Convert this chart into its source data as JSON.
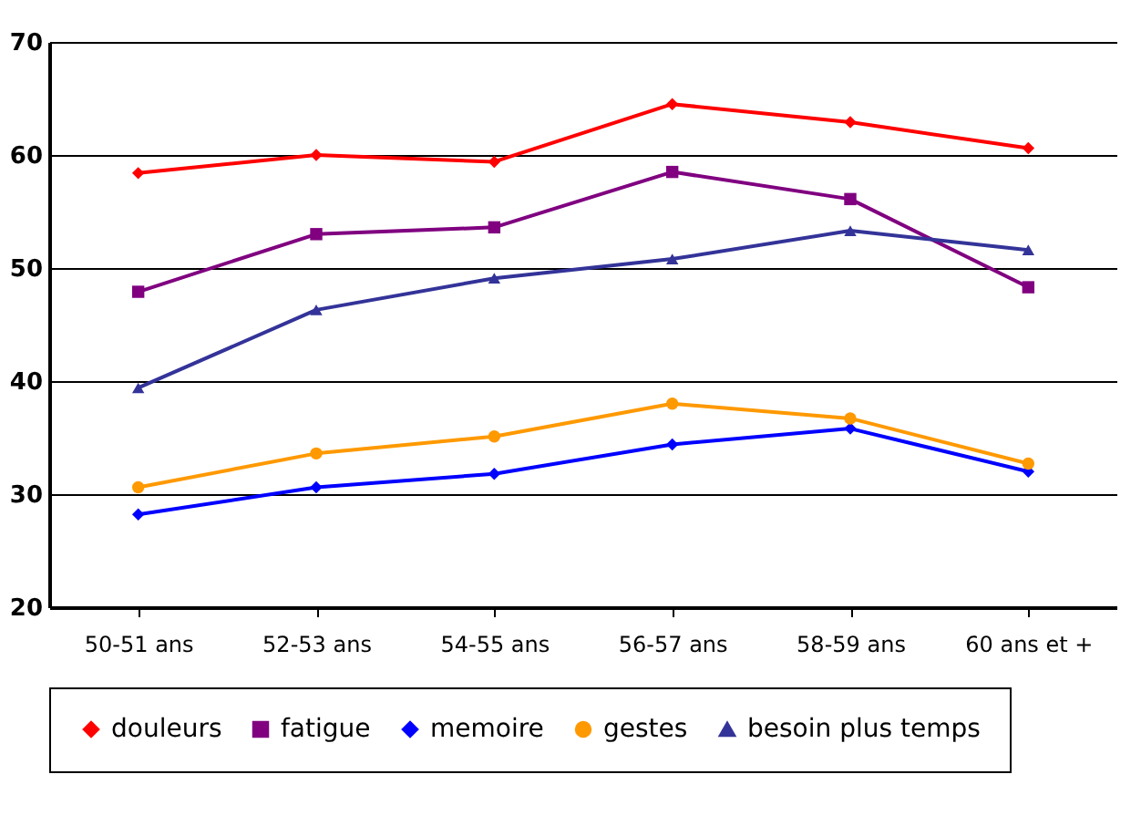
{
  "chart_data": {
    "type": "line",
    "categories": [
      "50-51 ans",
      "52-53 ans",
      "54-55 ans",
      "56-57 ans",
      "58-59 ans",
      "60 ans et +"
    ],
    "series": [
      {
        "name": "douleurs",
        "color": "#ff0000",
        "marker": "diamond",
        "values": [
          58.4,
          60.0,
          59.4,
          64.5,
          62.9,
          60.6
        ]
      },
      {
        "name": "fatigue",
        "color": "#800080",
        "marker": "square",
        "values": [
          47.9,
          53.0,
          53.6,
          58.5,
          56.1,
          48.3
        ]
      },
      {
        "name": "memoire",
        "color": "#0000ff",
        "marker": "diamond",
        "values": [
          28.2,
          30.6,
          31.8,
          34.4,
          35.8,
          32.0
        ]
      },
      {
        "name": "gestes",
        "color": "#ff9900",
        "marker": "circle",
        "values": [
          30.6,
          33.6,
          35.1,
          38.0,
          36.7,
          32.7
        ]
      },
      {
        "name": "besoin plus temps",
        "color": "#333399",
        "marker": "triangle",
        "values": [
          39.4,
          46.3,
          49.1,
          50.8,
          53.3,
          51.6
        ]
      }
    ],
    "ylim": [
      20,
      70
    ],
    "yticks": [
      20,
      30,
      40,
      50,
      60,
      70
    ],
    "grid": "y",
    "legend": "bottom"
  }
}
